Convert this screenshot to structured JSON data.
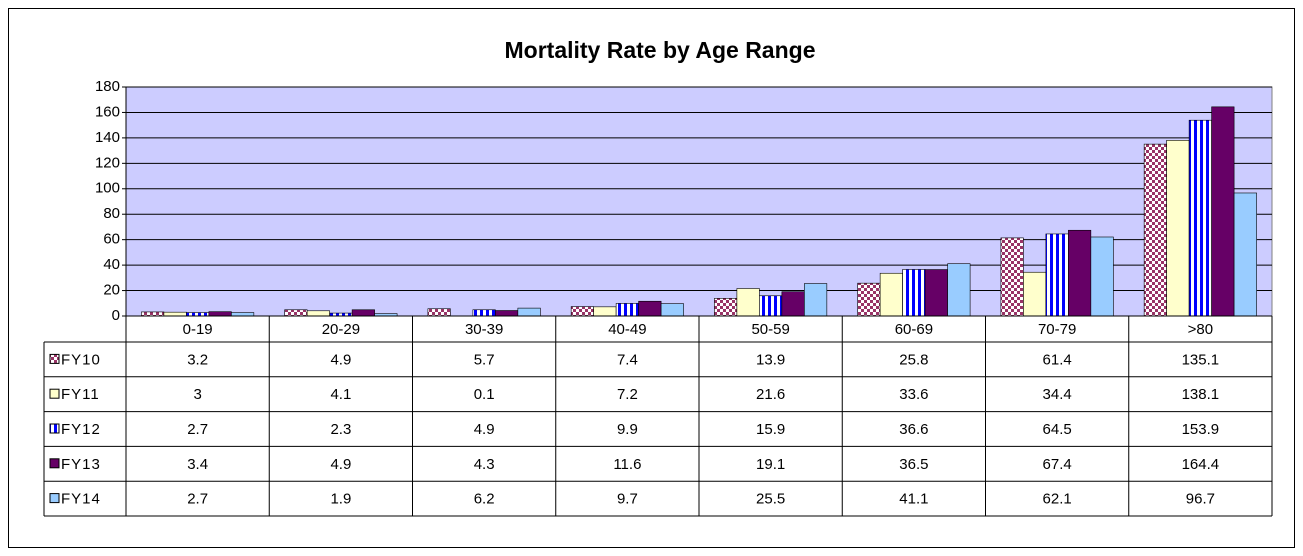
{
  "chart_data": {
    "type": "bar",
    "title": "Mortality Rate by Age Range",
    "categories": [
      "0-19",
      "20-29",
      "30-39",
      "40-49",
      "50-59",
      "60-69",
      "70-79",
      ">80"
    ],
    "series": [
      {
        "name": "FY10",
        "color": "#993366",
        "pattern": "checker",
        "values": [
          3.2,
          4.9,
          5.7,
          7.4,
          13.9,
          25.8,
          61.4,
          135.1
        ]
      },
      {
        "name": "FY11",
        "color": "#ffffcc",
        "values": [
          3,
          4.1,
          0.1,
          7.2,
          21.6,
          33.6,
          34.4,
          138.1
        ]
      },
      {
        "name": "FY12",
        "color": "#0000ff",
        "pattern": "vertical-stripes",
        "values": [
          2.7,
          2.3,
          4.9,
          9.9,
          15.9,
          36.6,
          64.5,
          153.9
        ]
      },
      {
        "name": "FY13",
        "color": "#660066",
        "values": [
          3.4,
          4.9,
          4.3,
          11.6,
          19.1,
          36.5,
          67.4,
          164.4
        ]
      },
      {
        "name": "FY14",
        "color": "#99ccff",
        "values": [
          2.7,
          1.9,
          6.2,
          9.7,
          25.5,
          41.1,
          62.1,
          96.7
        ]
      }
    ],
    "ylim": [
      0,
      180
    ],
    "yticks": [
      0,
      20,
      40,
      60,
      80,
      100,
      120,
      140,
      160,
      180
    ],
    "grid": true,
    "plot_background": "#ccccff",
    "data_table": true
  }
}
